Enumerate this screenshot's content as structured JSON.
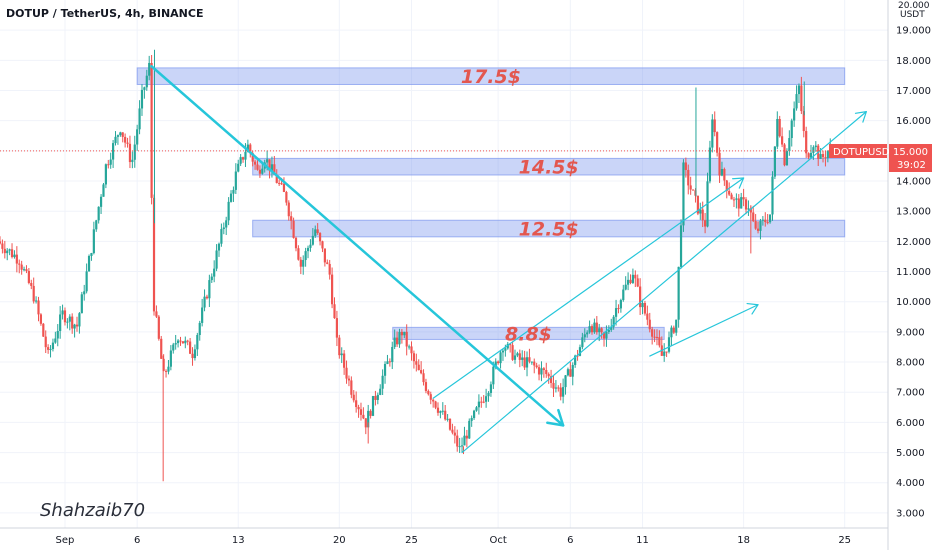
{
  "header": {
    "title": "DOTUP / TetherUS, 4h, BINANCE",
    "currency_top": "20.000",
    "currency_unit": "USDT"
  },
  "watermark": {
    "author": "Shahzaib70"
  },
  "price_badge": {
    "symbol": "DOTUPUSDT",
    "price": "15.000",
    "countdown": "39:02",
    "value": 15.0
  },
  "colors": {
    "up": "#26a69a",
    "down": "#ef5350",
    "zone_fill": "#7b96ee",
    "trend": "#26c6da",
    "label": "#e3574f",
    "badge": "#ef5350"
  },
  "chart_data": {
    "type": "candlestick",
    "title": "DOTUP / TetherUS, 4h, BINANCE",
    "ylim": [
      2.5,
      20.0
    ],
    "y_ticks": [
      "3.000",
      "4.000",
      "5.000",
      "6.000",
      "7.000",
      "8.000",
      "9.000",
      "10.000",
      "11.000",
      "12.000",
      "13.000",
      "14.000",
      "15.000",
      "16.000",
      "17.000",
      "18.000",
      "19.000"
    ],
    "x_ticks": [
      {
        "label": "Sep",
        "day": 1
      },
      {
        "label": "6",
        "day": 6
      },
      {
        "label": "13",
        "day": 13
      },
      {
        "label": "20",
        "day": 20
      },
      {
        "label": "25",
        "day": 25
      },
      {
        "label": "Oct",
        "day": 31
      },
      {
        "label": "6",
        "day": 36
      },
      {
        "label": "11",
        "day": 41
      },
      {
        "label": "18",
        "day": 48
      },
      {
        "label": "25",
        "day": 55
      }
    ],
    "x_range_days": [
      -3.5,
      58.0
    ],
    "zones": [
      {
        "label": "17.5$",
        "low": 17.2,
        "high": 17.75,
        "from_day": 6.0,
        "to_day": 55.0
      },
      {
        "label": "14.5$",
        "low": 14.2,
        "high": 14.75,
        "from_day": 14.0,
        "to_day": 55.0
      },
      {
        "label": "12.5$",
        "low": 12.15,
        "high": 12.7,
        "from_day": 14.0,
        "to_day": 55.0
      },
      {
        "label": "8.8$",
        "low": 8.75,
        "high": 9.15,
        "from_day": 23.7,
        "to_day": 42.5
      }
    ],
    "trendlines": [
      {
        "from": [
          7.0,
          17.8
        ],
        "to": [
          35.5,
          5.9
        ],
        "width": 2.5,
        "arrow": true
      },
      {
        "from": [
          26.5,
          6.8
        ],
        "to": [
          48.0,
          14.1
        ],
        "width": 1.2,
        "arrow": true
      },
      {
        "from": [
          28.5,
          5.0
        ],
        "to": [
          56.5,
          16.3
        ],
        "width": 1.2,
        "arrow": true
      },
      {
        "from": [
          41.5,
          8.2
        ],
        "to": [
          49.0,
          9.9
        ],
        "width": 1.2,
        "arrow": true
      }
    ],
    "anchors": [
      [
        -3.5,
        12.0
      ],
      [
        -2.0,
        11.4
      ],
      [
        -1.0,
        10.2
      ],
      [
        0.0,
        8.2
      ],
      [
        1.0,
        9.6
      ],
      [
        2.0,
        9.2
      ],
      [
        3.0,
        11.8
      ],
      [
        4.0,
        14.5
      ],
      [
        5.0,
        15.8
      ],
      [
        5.8,
        14.6
      ],
      [
        6.5,
        16.8
      ],
      [
        7.0,
        17.8
      ],
      [
        7.3,
        10.0
      ],
      [
        8.0,
        7.5
      ],
      [
        9.0,
        8.9
      ],
      [
        10.0,
        8.3
      ],
      [
        11.0,
        10.3
      ],
      [
        12.0,
        12.2
      ],
      [
        13.0,
        14.2
      ],
      [
        13.8,
        15.2
      ],
      [
        14.5,
        14.3
      ],
      [
        15.0,
        14.8
      ],
      [
        16.5,
        13.4
      ],
      [
        17.5,
        11.2
      ],
      [
        18.5,
        12.4
      ],
      [
        19.5,
        10.9
      ],
      [
        20.0,
        8.6
      ],
      [
        21.0,
        7.1
      ],
      [
        22.0,
        6.0
      ],
      [
        23.0,
        7.3
      ],
      [
        24.0,
        8.6
      ],
      [
        24.5,
        9.0
      ],
      [
        25.5,
        7.8
      ],
      [
        26.5,
        6.9
      ],
      [
        27.5,
        6.1
      ],
      [
        28.5,
        5.1
      ],
      [
        29.5,
        6.2
      ],
      [
        30.5,
        7.2
      ],
      [
        31.5,
        8.6
      ],
      [
        32.5,
        8.1
      ],
      [
        33.5,
        7.9
      ],
      [
        34.5,
        7.6
      ],
      [
        35.5,
        7.0
      ],
      [
        36.5,
        8.1
      ],
      [
        37.5,
        9.3
      ],
      [
        38.5,
        8.7
      ],
      [
        39.5,
        10.0
      ],
      [
        40.5,
        11.0
      ],
      [
        41.0,
        10.0
      ],
      [
        41.8,
        9.1
      ],
      [
        42.5,
        8.2
      ],
      [
        43.0,
        8.7
      ],
      [
        43.5,
        9.4
      ],
      [
        44.0,
        14.4
      ],
      [
        45.0,
        13.1
      ],
      [
        45.5,
        12.6
      ],
      [
        46.0,
        16.2
      ],
      [
        46.5,
        14.4
      ],
      [
        47.5,
        13.3
      ],
      [
        48.5,
        13.2
      ],
      [
        49.0,
        12.3
      ],
      [
        49.5,
        12.6
      ],
      [
        50.0,
        12.9
      ],
      [
        50.5,
        16.2
      ],
      [
        51.0,
        14.7
      ],
      [
        51.5,
        16.0
      ],
      [
        52.0,
        17.1
      ],
      [
        52.5,
        14.8
      ],
      [
        53.0,
        15.3
      ],
      [
        53.5,
        14.7
      ],
      [
        54.0,
        15.0
      ]
    ],
    "spikes": [
      [
        7.2,
        18.35
      ],
      [
        7.8,
        4.05
      ],
      [
        22.0,
        5.3
      ],
      [
        44.7,
        17.1
      ],
      [
        52.2,
        17.3
      ],
      [
        48.5,
        11.6
      ],
      [
        28.6,
        4.95
      ]
    ]
  }
}
